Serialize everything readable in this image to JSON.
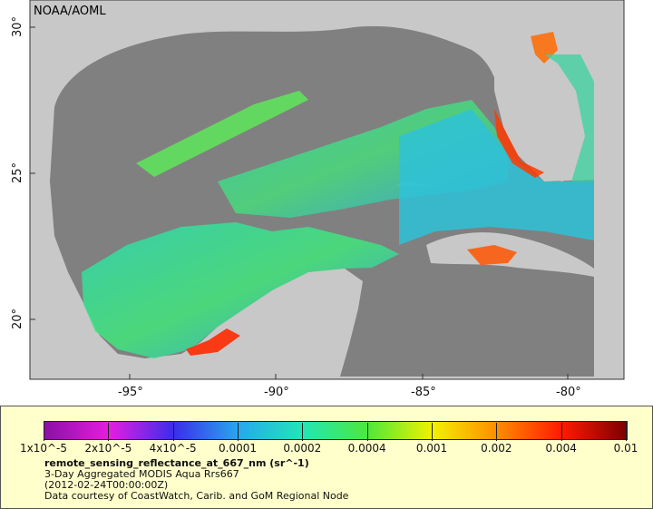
{
  "credit": "NOAA/AOML",
  "axes": {
    "latitude_labels": [
      "30°",
      "25°",
      "20°"
    ],
    "longitude_labels": [
      "-95°",
      "-90°",
      "-85°",
      "-80°"
    ]
  },
  "colorbar": {
    "ticks": [
      "1x10^-5",
      "2x10^-5",
      "4x10^-5",
      "0.0001",
      "0.0002",
      "0.0004",
      "0.001",
      "0.002",
      "0.004",
      "0.01"
    ],
    "colors": [
      "#8b0fa6",
      "#e51de0",
      "#3a2ee8",
      "#27a8f0",
      "#23e6b4",
      "#4ee83a",
      "#f3f100",
      "#ff8c00",
      "#ff1a00",
      "#7a0000"
    ]
  },
  "legend": {
    "variable": "remote_sensing_reflectance_at_667_nm (sr^-1)",
    "dataset": "3-Day Aggregated MODIS Aqua Rrs667",
    "time": "(2012-02-24T00:00:00Z)",
    "source": "Data courtesy of CoastWatch, Carib. and GoM Regional Node"
  },
  "colors": {
    "land": "#c8c8c8",
    "ocean_nodata": "#808080",
    "legend_bg": "#ffffcc"
  }
}
